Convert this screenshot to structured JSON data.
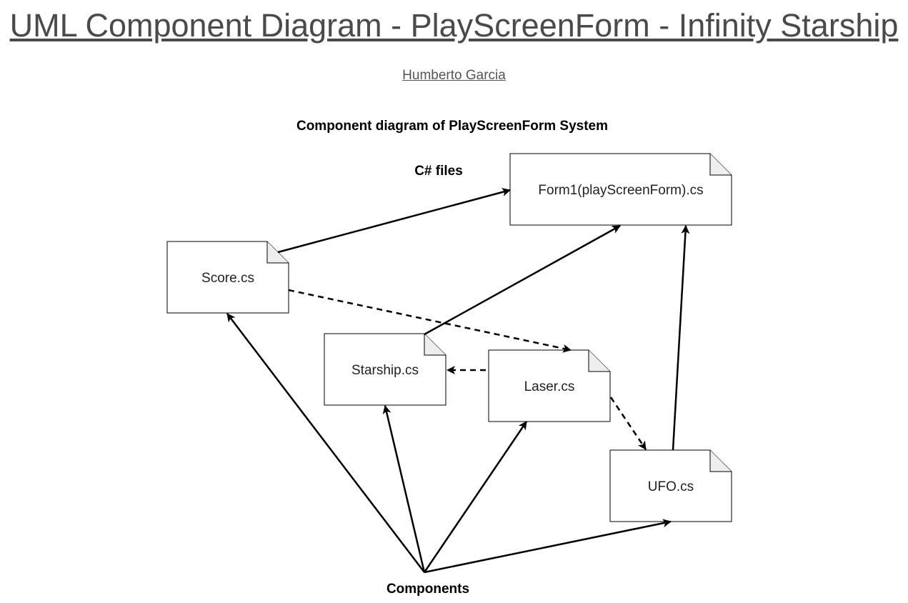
{
  "header": {
    "title": "UML Component Diagram - PlayScreenForm - Infinity Starship",
    "author": "Humberto Garcia"
  },
  "diagram": {
    "caption": "Component diagram of PlayScreenForm System",
    "group_label": "C# files",
    "root_label": "Components",
    "nodes": {
      "form1": "Form1(playScreenForm).cs",
      "score": "Score.cs",
      "starship": "Starship.cs",
      "laser": "Laser.cs",
      "ufo": "UFO.cs"
    },
    "edges": [
      {
        "from": "Score.cs",
        "to": "Form1(playScreenForm).cs",
        "style": "solid"
      },
      {
        "from": "Starship.cs",
        "to": "Form1(playScreenForm).cs",
        "style": "solid"
      },
      {
        "from": "UFO.cs",
        "to": "Form1(playScreenForm).cs",
        "style": "solid"
      },
      {
        "from": "Score.cs",
        "to": "Laser.cs",
        "style": "dashed"
      },
      {
        "from": "Laser.cs",
        "to": "Starship.cs",
        "style": "dashed"
      },
      {
        "from": "Laser.cs",
        "to": "UFO.cs",
        "style": "dashed"
      },
      {
        "from": "Components",
        "to": "Score.cs",
        "style": "solid"
      },
      {
        "from": "Components",
        "to": "Starship.cs",
        "style": "solid"
      },
      {
        "from": "Components",
        "to": "Laser.cs",
        "style": "solid"
      },
      {
        "from": "Components",
        "to": "UFO.cs",
        "style": "solid"
      }
    ]
  },
  "colors": {
    "title_text": "#4a4a4a",
    "stroke": "#000000",
    "note_fold": "#eeeeee"
  }
}
